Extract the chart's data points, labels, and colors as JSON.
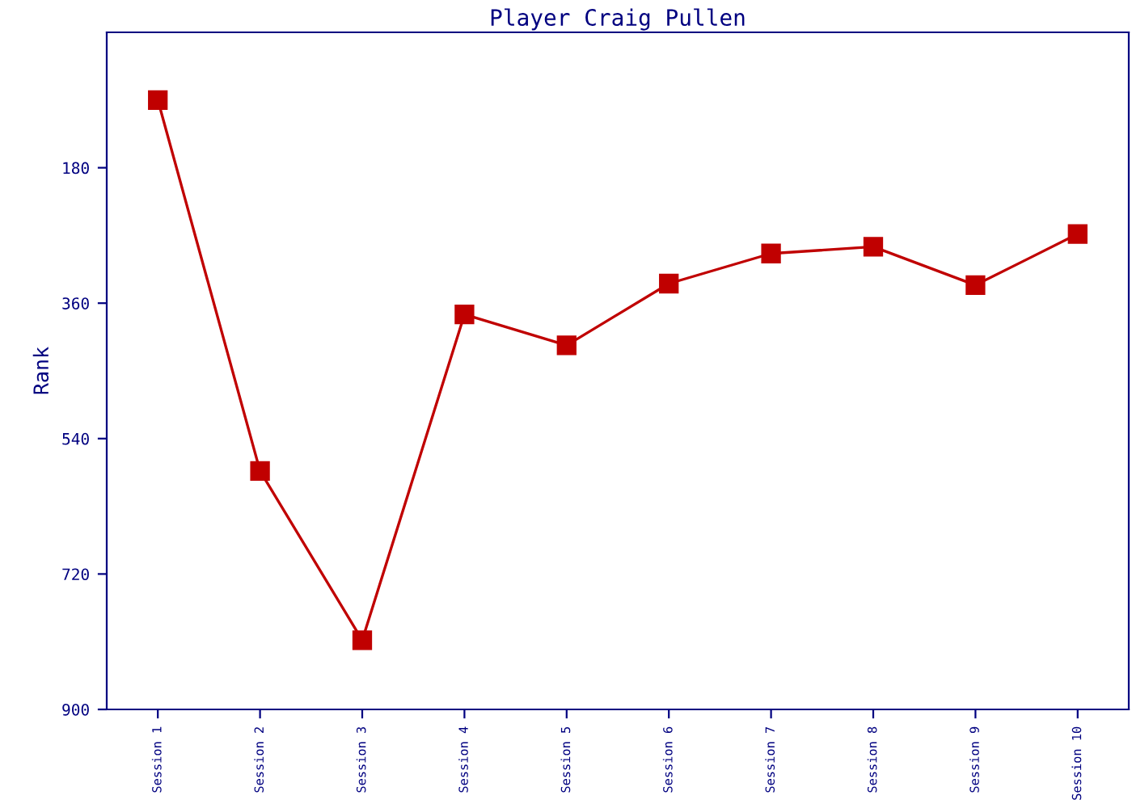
{
  "chart_data": {
    "type": "line",
    "title": "Player Craig Pullen",
    "ylabel": "Rank",
    "categories": [
      "Session 1",
      "Session 2",
      "Session 3",
      "Session 4",
      "Session 5",
      "Session 6",
      "Session 7",
      "Session 8",
      "Session 9",
      "Session 10"
    ],
    "series": [
      {
        "color": "#c00000",
        "values": [
          90,
          583,
          808,
          375,
          416,
          334,
          294,
          285,
          336,
          268
        ]
      }
    ],
    "ylim": [
      900,
      0
    ],
    "yticks": [
      180,
      360,
      540,
      720,
      900
    ],
    "marker": "square",
    "line_style": "solid",
    "grid": false,
    "legend": false
  }
}
